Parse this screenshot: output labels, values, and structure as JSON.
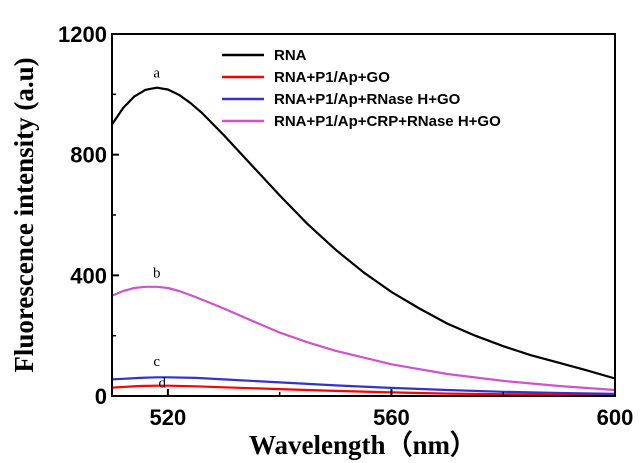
{
  "chart_data": {
    "type": "line",
    "title": "",
    "xlabel": "Wavelength（nm）",
    "ylabel": "Fluorescence intensity (a.u)",
    "xlim": [
      510,
      600
    ],
    "ylim": [
      0,
      1200
    ],
    "x_ticks": [
      520,
      560,
      600
    ],
    "y_ticks": [
      0,
      400,
      800,
      1200
    ],
    "grid": false,
    "legend_position": "top-right",
    "series": [
      {
        "name": "RNA",
        "label": "a",
        "color": "#000000",
        "x": [
          510,
          512,
          514,
          516,
          518,
          520,
          522,
          524,
          526,
          530,
          535,
          540,
          545,
          550,
          555,
          560,
          565,
          570,
          575,
          580,
          585,
          590,
          595,
          600
        ],
        "y": [
          900,
          955,
          993,
          1015,
          1022,
          1016,
          998,
          972,
          940,
          865,
          765,
          665,
          570,
          485,
          410,
          345,
          290,
          240,
          200,
          165,
          135,
          110,
          85,
          58
        ]
      },
      {
        "name": "RNA+P1/Ap+GO",
        "label": "d",
        "color": "#ff0000",
        "x": [
          510,
          515,
          518,
          520,
          525,
          530,
          540,
          550,
          560,
          570,
          580,
          590,
          600
        ],
        "y": [
          28,
          33,
          34,
          34,
          32,
          29,
          23,
          17,
          12,
          8,
          6,
          4,
          3
        ]
      },
      {
        "name": "RNA+P1/Ap+RNase H+GO",
        "label": "c",
        "color": "#3333cc",
        "x": [
          510,
          515,
          518,
          520,
          525,
          530,
          540,
          550,
          560,
          570,
          580,
          590,
          600
        ],
        "y": [
          55,
          60,
          62,
          62,
          60,
          55,
          45,
          35,
          27,
          20,
          14,
          10,
          7
        ]
      },
      {
        "name": "RNA+P1/Ap+CRP+RNase H+GO",
        "label": "b",
        "color": "#cc55cc",
        "x": [
          510,
          512,
          514,
          516,
          518,
          520,
          522,
          525,
          530,
          535,
          540,
          545,
          550,
          560,
          570,
          580,
          590,
          600
        ],
        "y": [
          332,
          348,
          358,
          362,
          362,
          358,
          348,
          328,
          290,
          250,
          210,
          178,
          150,
          105,
          73,
          50,
          33,
          20
        ]
      }
    ],
    "curve_label_positions": [
      {
        "text": "a",
        "x": 518,
        "y": 1055
      },
      {
        "text": "b",
        "x": 518,
        "y": 392
      },
      {
        "text": "c",
        "x": 518,
        "y": 100
      },
      {
        "text": "d",
        "x": 519,
        "y": 28
      }
    ]
  }
}
